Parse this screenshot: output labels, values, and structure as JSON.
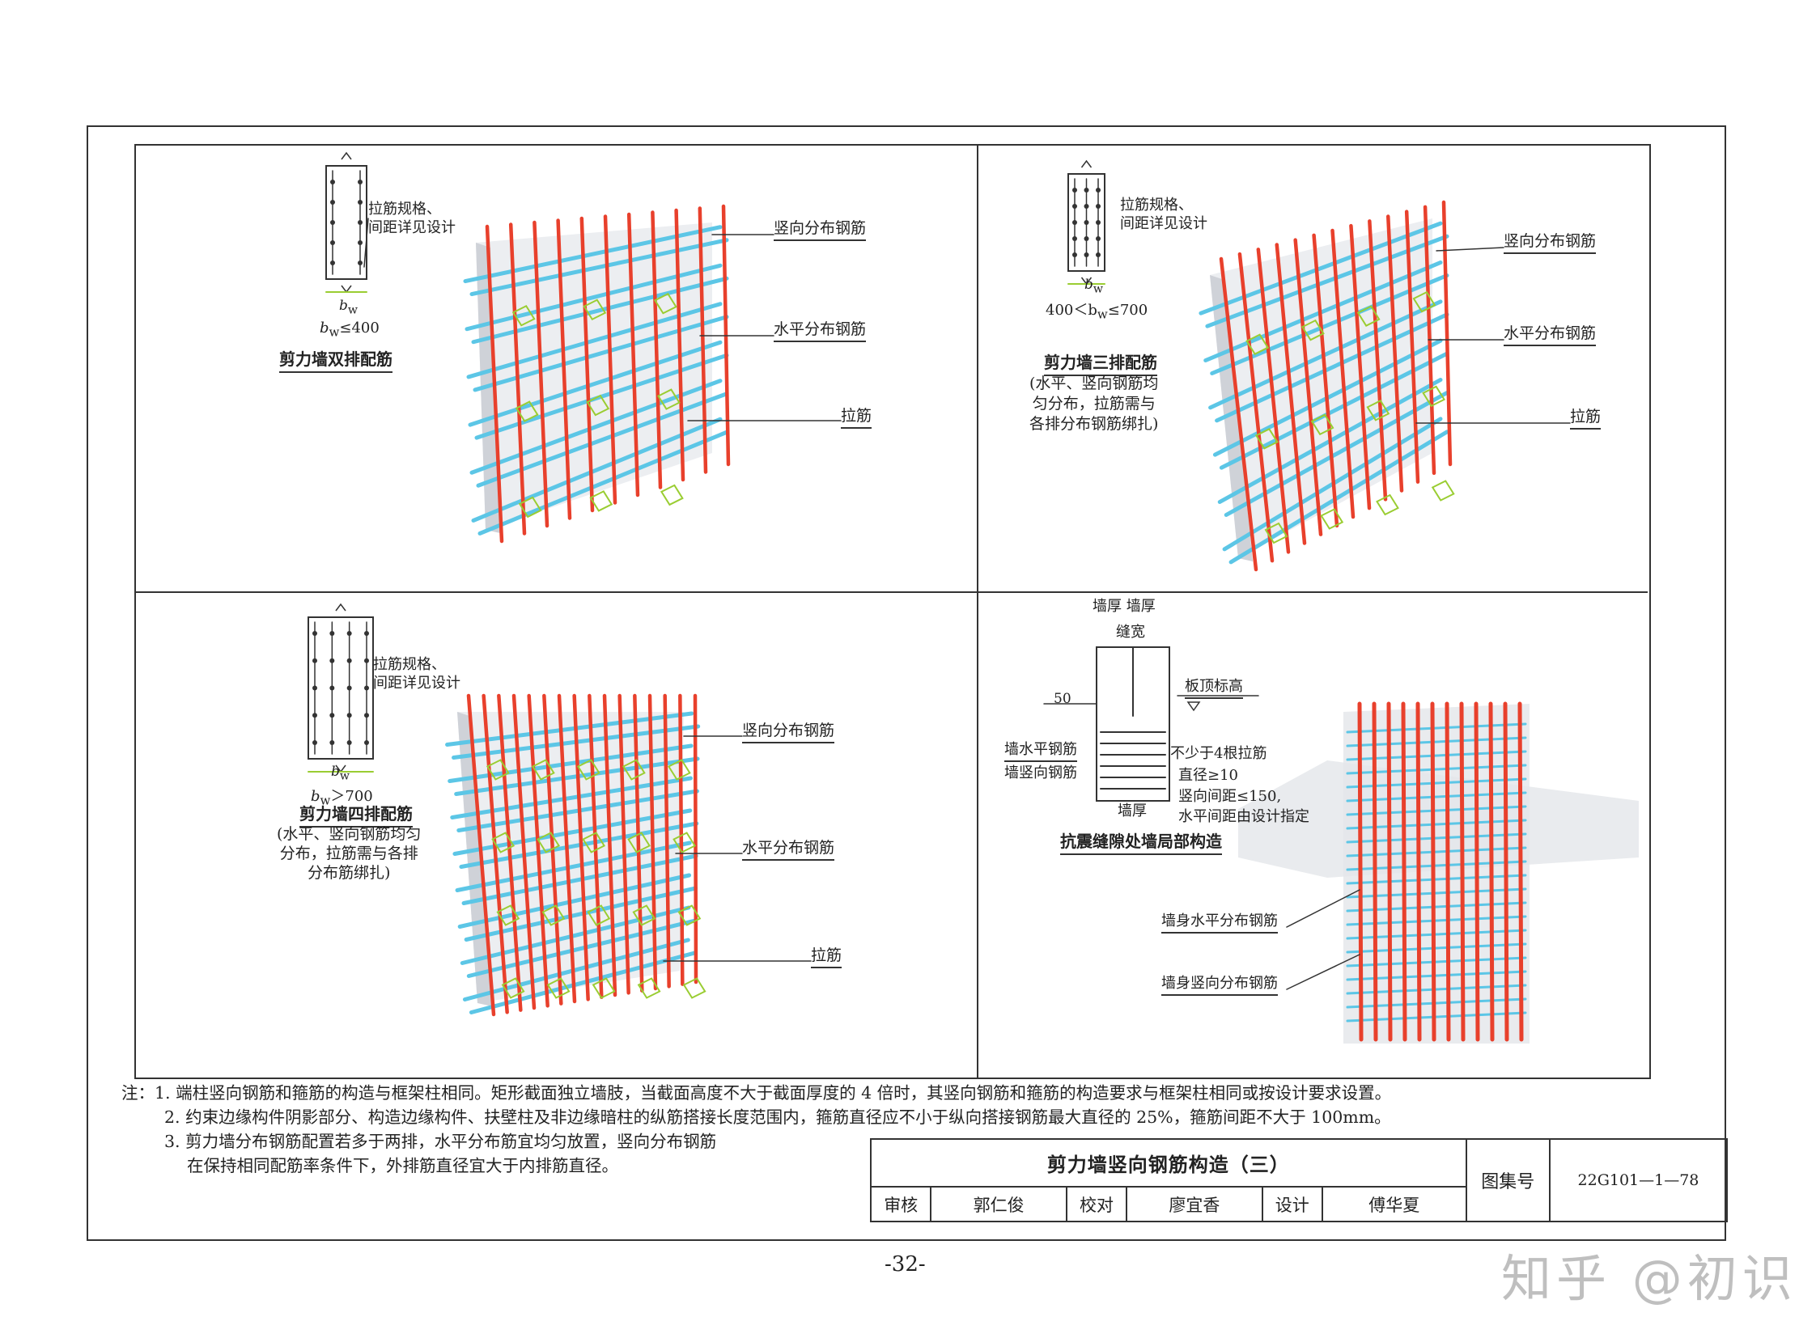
{
  "panels": {
    "tl": {
      "tie_note_1": "拉筋规格、",
      "tie_note_2": "间距详见设计",
      "bw": "b",
      "bw_sub": "w",
      "cond_pre": "b",
      "cond_sub": "w",
      "cond_post": "≤400",
      "caption": "剪力墙双排配筋",
      "vertical": "竖向分布钢筋",
      "horizontal": "水平分布钢筋",
      "tie": "拉筋"
    },
    "tr": {
      "tie_note_1": "拉筋规格、",
      "tie_note_2": "间距详见设计",
      "bw": "b",
      "bw_sub": "w",
      "cond_pre": "400＜b",
      "cond_sub": "w",
      "cond_post": "≤700",
      "caption": "剪力墙三排配筋",
      "desc_1": "(水平、竖向钢筋均",
      "desc_2": "匀分布，拉筋需与",
      "desc_3": "各排分布钢筋绑扎)",
      "vertical": "竖向分布钢筋",
      "horizontal": "水平分布钢筋",
      "tie": "拉筋"
    },
    "bl": {
      "tie_note_1": "拉筋规格、",
      "tie_note_2": "间距详见设计",
      "bw": "b",
      "bw_sub": "w",
      "cond_pre": "b",
      "cond_sub": "w",
      "cond_post": "＞700",
      "caption": "剪力墙四排配筋",
      "desc_1": "(水平、竖向钢筋均匀",
      "desc_2": "分布，拉筋需与各排",
      "desc_3": "分布筋绑扎)",
      "vertical": "竖向分布钢筋",
      "horizontal": "水平分布钢筋",
      "tie": "拉筋"
    },
    "br": {
      "wall_thick_1": "墙厚",
      "wall_thick_2": "墙厚",
      "gap_width": "缝宽",
      "slab_top": "板顶标高",
      "dim_50": "50",
      "wall_h_bar": "墙水平钢筋",
      "wall_v_bar": "墙竖向钢筋",
      "min_ties": "不少于4根拉筋",
      "diameter": "直径≥10",
      "spacing_1": "竖向间距≤150,",
      "spacing_2": "水平间距由设计指定",
      "wall_thick": "墙厚",
      "caption": "抗震缝隙处墙局部构造",
      "body_h": "墙身水平分布钢筋",
      "body_v": "墙身竖向分布钢筋"
    }
  },
  "notes": {
    "prefix": "注：",
    "n1": "1. 端柱竖向钢筋和箍筋的构造与框架柱相同。矩形截面独立墙肢，当截面高度不大于截面厚度的 4 倍时，其竖向钢筋和箍筋的构造要求与框架柱相同或按设计要求设置。",
    "n2": "2. 约束边缘构件阴影部分、构造边缘构件、扶壁柱及非边缘暗柱的纵筋搭接长度范围内，箍筋直径应不小于纵向搭接钢筋最大直径的 25%，箍筋间距不大于 100mm。",
    "n3a": "3. 剪力墙分布钢筋配置若多于两排，水平分布筋宜均匀放置，竖向分布钢筋",
    "n3b": "在保持相同配筋率条件下，外排筋直径宜大于内排筋直径。"
  },
  "titleblock": {
    "title": "剪力墙竖向钢筋构造（三）",
    "atlas_label": "图集号",
    "atlas_no": "22G101—1—78",
    "review": "审核",
    "reviewer": "郭仁俊",
    "check": "校对",
    "checker": "廖宜香",
    "design": "设计",
    "designer": "傅华夏"
  },
  "page_no": "-32-",
  "watermark": "知乎 @初识",
  "colors": {
    "rebar_v": "#e8402c",
    "rebar_h": "#5cc6e6",
    "tie": "#9acd32",
    "wall": "#e6e8ec"
  }
}
